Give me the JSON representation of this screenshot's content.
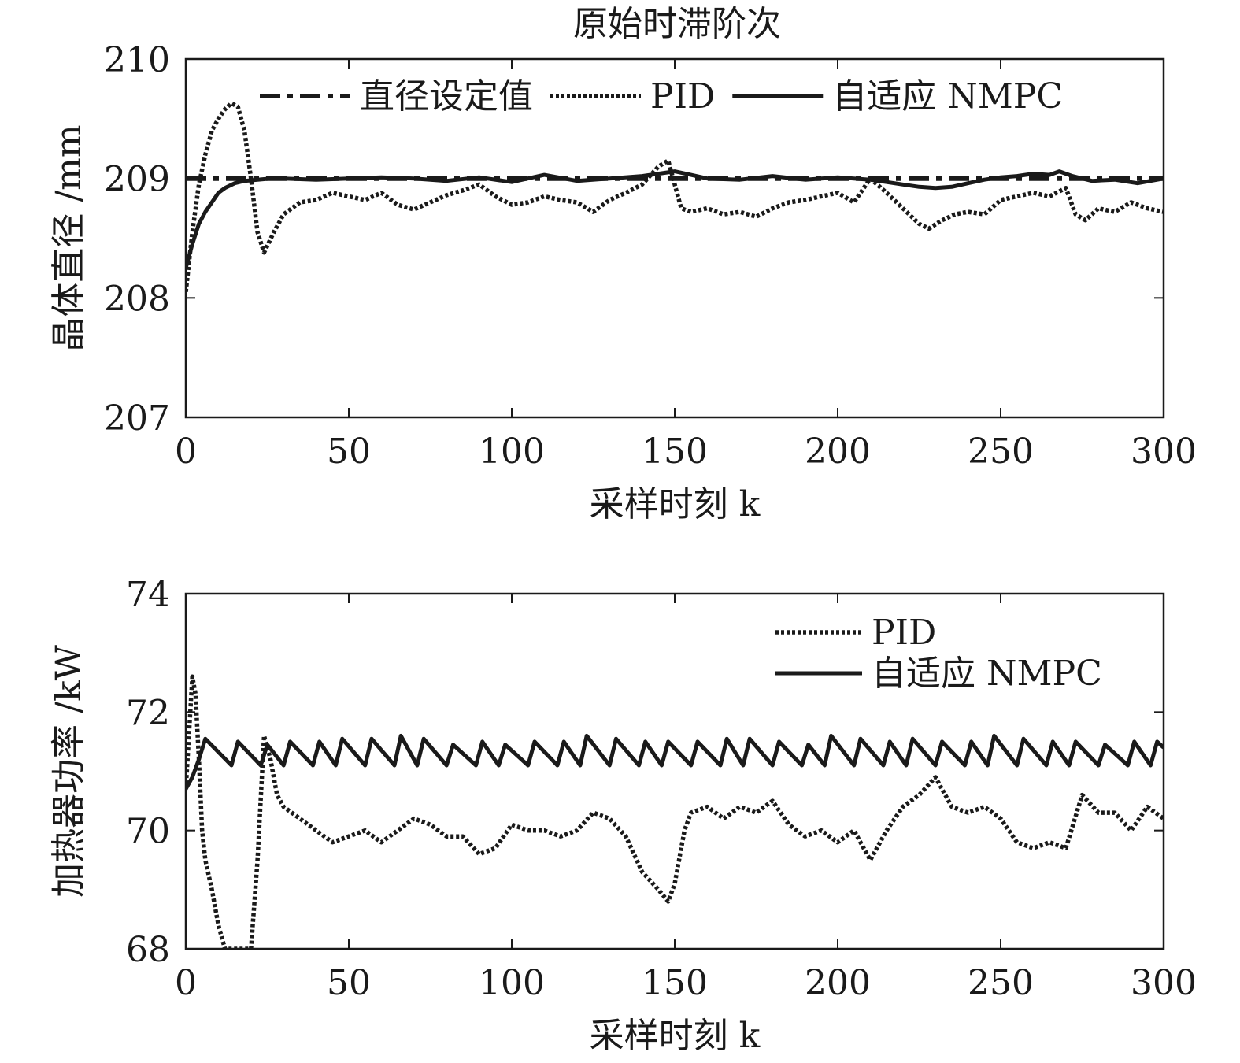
{
  "figure": {
    "title": "原始时滞阶次"
  },
  "chart_data": [
    {
      "type": "line",
      "title": "原始时滞阶次",
      "xlabel": "采样时刻 k",
      "ylabel": "晶体直径 /mm",
      "xlim": [
        0,
        300
      ],
      "ylim": [
        207,
        210
      ],
      "xticks": [
        0,
        50,
        100,
        150,
        200,
        250,
        300
      ],
      "yticks": [
        207,
        208,
        209,
        210
      ],
      "legend_position": "top",
      "series": [
        {
          "name": "直径设定值",
          "style": "dashdot",
          "x": [
            0,
            300
          ],
          "y": [
            209,
            209
          ]
        },
        {
          "name": "PID",
          "style": "dotted",
          "x": [
            0,
            2,
            4,
            6,
            8,
            10,
            12,
            14,
            16,
            18,
            20,
            22,
            24,
            27,
            30,
            35,
            40,
            45,
            50,
            55,
            60,
            65,
            70,
            75,
            80,
            85,
            90,
            95,
            100,
            105,
            110,
            115,
            120,
            125,
            130,
            135,
            140,
            145,
            148,
            152,
            155,
            160,
            165,
            170,
            175,
            180,
            185,
            190,
            195,
            200,
            205,
            210,
            215,
            220,
            225,
            228,
            232,
            236,
            240,
            245,
            250,
            255,
            260,
            265,
            270,
            273,
            276,
            280,
            285,
            290,
            295,
            300
          ],
          "y": [
            208.05,
            208.55,
            208.95,
            209.2,
            209.4,
            209.5,
            209.58,
            209.63,
            209.6,
            209.4,
            209.0,
            208.55,
            208.38,
            208.55,
            208.7,
            208.8,
            208.82,
            208.88,
            208.85,
            208.82,
            208.88,
            208.78,
            208.74,
            208.8,
            208.86,
            208.9,
            208.95,
            208.85,
            208.78,
            208.8,
            208.85,
            208.82,
            208.8,
            208.72,
            208.82,
            208.88,
            208.95,
            209.1,
            209.15,
            208.75,
            208.72,
            208.75,
            208.7,
            208.72,
            208.68,
            208.75,
            208.8,
            208.82,
            208.85,
            208.88,
            208.8,
            209.0,
            208.88,
            208.75,
            208.62,
            208.58,
            208.65,
            208.7,
            208.72,
            208.7,
            208.82,
            208.85,
            208.88,
            208.85,
            208.92,
            208.7,
            208.65,
            208.75,
            208.72,
            208.8,
            208.75,
            208.72
          ]
        },
        {
          "name": "自适应 NMPC",
          "style": "solid",
          "x": [
            0,
            2,
            4,
            6,
            8,
            10,
            12,
            15,
            18,
            22,
            26,
            30,
            40,
            50,
            60,
            70,
            80,
            90,
            100,
            110,
            120,
            130,
            140,
            145,
            150,
            155,
            160,
            170,
            180,
            190,
            200,
            210,
            215,
            220,
            225,
            230,
            235,
            240,
            245,
            250,
            255,
            260,
            265,
            268,
            272,
            278,
            285,
            292,
            300
          ],
          "y": [
            208.25,
            208.45,
            208.62,
            208.72,
            208.8,
            208.88,
            208.92,
            208.96,
            208.98,
            208.99,
            209.0,
            209.0,
            208.99,
            209.0,
            209.01,
            209.0,
            208.98,
            209.01,
            208.97,
            209.03,
            208.98,
            209.0,
            209.02,
            209.04,
            209.06,
            209.03,
            209.0,
            208.99,
            209.02,
            208.99,
            209.01,
            208.99,
            208.97,
            208.95,
            208.93,
            208.92,
            208.93,
            208.96,
            208.99,
            209.01,
            209.02,
            209.04,
            209.03,
            209.06,
            209.02,
            208.98,
            208.99,
            208.96,
            209.0
          ]
        }
      ]
    },
    {
      "type": "line",
      "title": "",
      "xlabel": "采样时刻 k",
      "ylabel": "加热器功率 /kW",
      "xlim": [
        0,
        300
      ],
      "ylim": [
        68,
        74
      ],
      "xticks": [
        0,
        50,
        100,
        150,
        200,
        250,
        300
      ],
      "yticks": [
        68,
        70,
        72,
        74
      ],
      "legend_position": "top-right",
      "series": [
        {
          "name": "PID",
          "style": "dotted",
          "x": [
            0,
            2,
            3,
            4,
            5,
            6,
            8,
            10,
            12,
            14,
            16,
            18,
            20,
            22,
            24,
            26,
            28,
            30,
            35,
            40,
            45,
            50,
            55,
            60,
            65,
            70,
            75,
            80,
            85,
            90,
            95,
            100,
            105,
            110,
            115,
            120,
            125,
            130,
            135,
            140,
            145,
            148,
            150,
            153,
            155,
            160,
            165,
            170,
            175,
            180,
            185,
            190,
            195,
            200,
            205,
            210,
            215,
            220,
            225,
            230,
            235,
            240,
            245,
            250,
            255,
            260,
            265,
            270,
            275,
            280,
            285,
            290,
            295,
            300
          ],
          "y": [
            70.7,
            72.6,
            72.3,
            71.2,
            70.0,
            69.5,
            69.0,
            68.4,
            68.0,
            68.0,
            68.0,
            68.0,
            68.0,
            69.5,
            71.6,
            71.2,
            70.6,
            70.4,
            70.2,
            70.0,
            69.8,
            69.9,
            70.0,
            69.8,
            70.0,
            70.2,
            70.1,
            69.9,
            69.9,
            69.6,
            69.7,
            70.1,
            70.0,
            70.0,
            69.9,
            70.0,
            70.3,
            70.2,
            69.9,
            69.3,
            69.0,
            68.8,
            69.1,
            70.0,
            70.3,
            70.4,
            70.2,
            70.4,
            70.3,
            70.5,
            70.1,
            69.9,
            70.0,
            69.8,
            70.0,
            69.5,
            70.0,
            70.4,
            70.6,
            70.9,
            70.4,
            70.3,
            70.4,
            70.2,
            69.8,
            69.7,
            69.8,
            69.7,
            70.6,
            70.3,
            70.3,
            70.0,
            70.4,
            70.2
          ]
        },
        {
          "name": "自适应 NMPC",
          "style": "solid",
          "x": [
            0,
            2,
            4,
            6,
            14,
            16,
            23,
            25,
            30,
            32,
            39,
            41,
            46,
            48,
            55,
            57,
            64,
            66,
            71,
            73,
            80,
            82,
            89,
            91,
            96,
            98,
            105,
            107,
            114,
            116,
            121,
            123,
            130,
            132,
            139,
            141,
            146,
            148,
            155,
            157,
            164,
            166,
            171,
            173,
            180,
            182,
            189,
            191,
            196,
            198,
            205,
            207,
            214,
            216,
            221,
            223,
            230,
            232,
            239,
            241,
            246,
            248,
            255,
            257,
            264,
            266,
            271,
            273,
            280,
            282,
            289,
            291,
            296,
            298,
            300
          ],
          "y": [
            70.7,
            70.9,
            71.2,
            71.55,
            71.1,
            71.5,
            71.1,
            71.45,
            71.1,
            71.5,
            71.1,
            71.5,
            71.1,
            71.55,
            71.1,
            71.55,
            71.1,
            71.6,
            71.1,
            71.55,
            71.1,
            71.45,
            71.1,
            71.5,
            71.1,
            71.45,
            71.1,
            71.5,
            71.1,
            71.5,
            71.1,
            71.6,
            71.1,
            71.55,
            71.1,
            71.5,
            71.1,
            71.5,
            71.1,
            71.5,
            71.1,
            71.55,
            71.1,
            71.55,
            71.1,
            71.5,
            71.1,
            71.45,
            71.1,
            71.6,
            71.1,
            71.55,
            71.1,
            71.5,
            71.1,
            71.55,
            71.1,
            71.5,
            71.1,
            71.5,
            71.1,
            71.6,
            71.1,
            71.55,
            71.1,
            71.5,
            71.1,
            71.5,
            71.1,
            71.45,
            71.1,
            71.5,
            71.1,
            71.5,
            71.4
          ]
        }
      ]
    }
  ]
}
